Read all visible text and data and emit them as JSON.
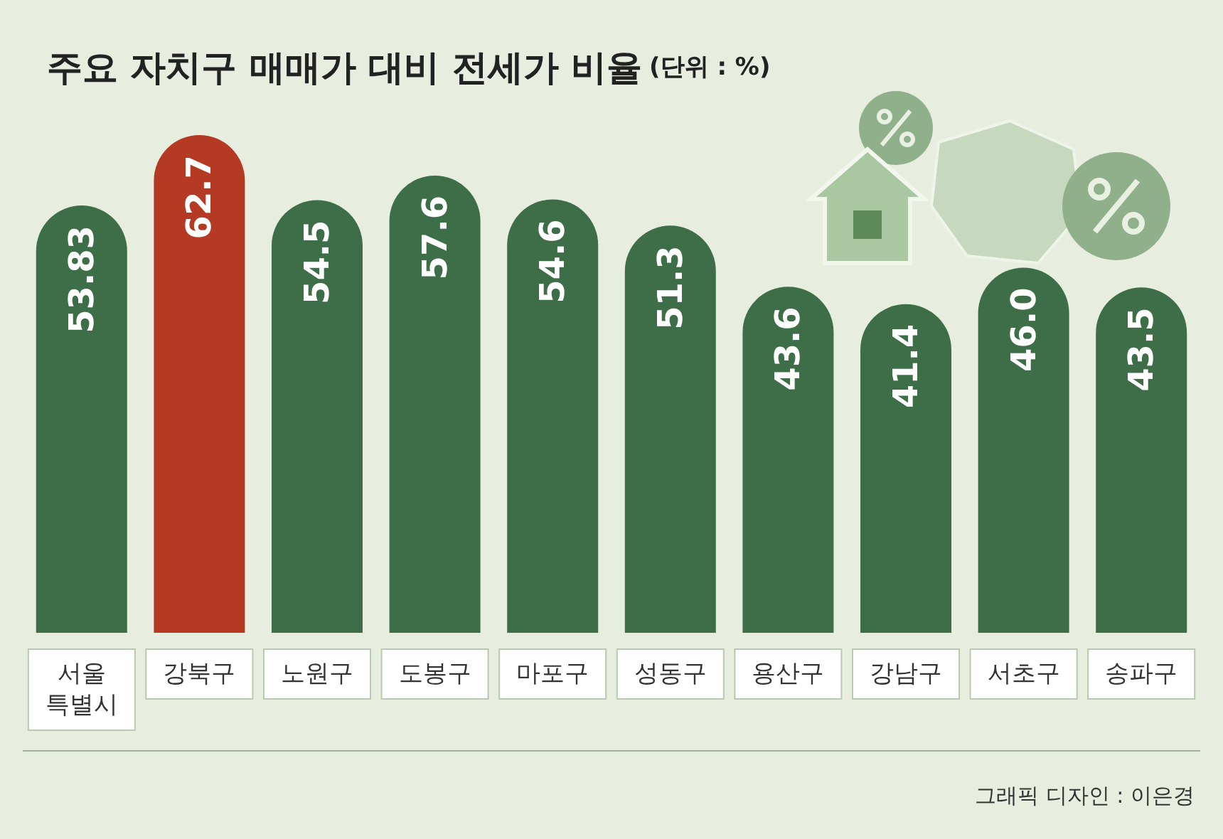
{
  "chart_data": {
    "type": "bar",
    "title": "주요 자치구 매매가 대비 전세가 비율",
    "subtitle": "(단위 : %)",
    "categories": [
      "서울\n특별시",
      "강북구",
      "노원구",
      "도봉구",
      "마포구",
      "성동구",
      "용산구",
      "강남구",
      "서초구",
      "송파구"
    ],
    "values": [
      53.83,
      62.7,
      54.5,
      57.6,
      54.6,
      51.3,
      43.6,
      41.4,
      46.0,
      43.5
    ],
    "value_labels": [
      "53.83",
      "62.7",
      "54.5",
      "57.6",
      "54.6",
      "51.3",
      "43.6",
      "41.4",
      "46.0",
      "43.5"
    ],
    "colors": [
      "#3e6e48",
      "#b53a24",
      "#3e6e48",
      "#3e6e48",
      "#3e6e48",
      "#3e6e48",
      "#3e6e48",
      "#3e6e48",
      "#3e6e48",
      "#3e6e48"
    ],
    "annotations": [
      "그래픽 디자인 : 이은경"
    ]
  }
}
